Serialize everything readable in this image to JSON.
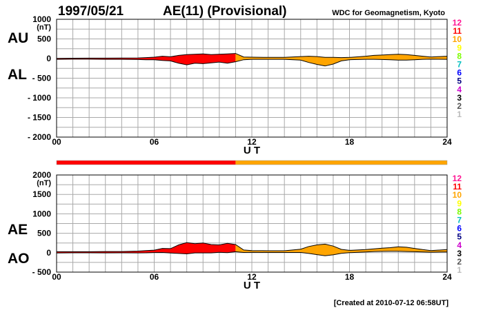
{
  "header": {
    "date": "1997/05/21",
    "title": "AE(11) (Provisional)",
    "source": "WDC for Geomagnetism, Kyoto",
    "created": "[Created at 2010-07-12 06:58UT]"
  },
  "stations": {
    "labels": [
      "12",
      "11",
      "10",
      "9",
      "8",
      "7",
      "6",
      "5",
      "4",
      "3",
      "2",
      "1"
    ],
    "colors": [
      "#ff1493",
      "#ff0000",
      "#ffa500",
      "#ffff00",
      "#7cfc00",
      "#00bfbf",
      "#0000ff",
      "#000080",
      "#cc00cc",
      "#000000",
      "#555555",
      "#bbbbbb"
    ]
  },
  "chart_data": [
    {
      "type": "area",
      "name": "AU/AL",
      "left_labels": [
        "AU",
        "AL"
      ],
      "unit_label": "(nT)",
      "xlabel": "U T",
      "x_ticks": [
        "00",
        "06",
        "12",
        "18",
        "24"
      ],
      "xlim": [
        0,
        24
      ],
      "ylim": [
        -2000,
        1000
      ],
      "y_ticks": [
        "1000",
        "500",
        "0",
        "- 500",
        "- 1000",
        "- 1500",
        "- 2000"
      ],
      "y_tick_values": [
        1000,
        500,
        0,
        -500,
        -1000,
        -1500,
        -2000
      ],
      "grid": true,
      "x": [
        0,
        1,
        2,
        3,
        4,
        5,
        5.5,
        6,
        6.5,
        7,
        7.5,
        8,
        8.5,
        9,
        9.5,
        10,
        10.5,
        11,
        11.5,
        12,
        13,
        14,
        15,
        15.5,
        16,
        16.5,
        17,
        17.5,
        18,
        19,
        19.5,
        20,
        20.5,
        21,
        21.5,
        22,
        22.5,
        23,
        24
      ],
      "series": [
        {
          "values": [
            5,
            8,
            10,
            10,
            12,
            15,
            25,
            35,
            60,
            45,
            80,
            100,
            110,
            120,
            100,
            110,
            120,
            130,
            40,
            35,
            30,
            30,
            50,
            60,
            50,
            30,
            30,
            25,
            30,
            60,
            80,
            90,
            100,
            110,
            100,
            80,
            60,
            40,
            60
          ]
        },
        {
          "values": [
            -20,
            -15,
            -15,
            -20,
            -20,
            -25,
            -30,
            -30,
            -50,
            -60,
            -120,
            -160,
            -120,
            -130,
            -110,
            -90,
            -120,
            -80,
            -30,
            -20,
            -20,
            -20,
            -40,
            -100,
            -150,
            -190,
            -140,
            -60,
            -30,
            -20,
            -20,
            -25,
            -30,
            -40,
            -40,
            -30,
            -20,
            -15,
            -20
          ]
        }
      ],
      "segments": [
        {
          "from": 0,
          "to": 11,
          "color": "#ff0000"
        },
        {
          "from": 11,
          "to": 24,
          "color": "#ffa500"
        }
      ]
    },
    {
      "type": "area",
      "name": "AE/AO",
      "left_labels": [
        "AE",
        "AO"
      ],
      "unit_label": "(nT)",
      "xlabel": "U T",
      "x_ticks": [
        "00",
        "06",
        "12",
        "18",
        "24"
      ],
      "xlim": [
        0,
        24
      ],
      "ylim": [
        -500,
        2000
      ],
      "y_ticks": [
        "2000",
        "1500",
        "1000",
        "500",
        "0",
        "- 500"
      ],
      "y_tick_values": [
        2000,
        1500,
        1000,
        500,
        0,
        -500
      ],
      "grid": true,
      "x": [
        0,
        1,
        2,
        3,
        4,
        5,
        5.5,
        6,
        6.5,
        7,
        7.5,
        8,
        8.5,
        9,
        9.5,
        10,
        10.5,
        11,
        11.5,
        12,
        13,
        14,
        15,
        15.5,
        16,
        16.5,
        17,
        17.5,
        18,
        19,
        19.5,
        20,
        20.5,
        21,
        21.5,
        22,
        22.5,
        23,
        24
      ],
      "series": [
        {
          "values": [
            25,
            25,
            25,
            30,
            30,
            40,
            55,
            65,
            110,
            105,
            200,
            260,
            230,
            250,
            210,
            200,
            240,
            210,
            70,
            55,
            50,
            50,
            90,
            160,
            200,
            220,
            170,
            85,
            60,
            80,
            100,
            115,
            130,
            150,
            140,
            110,
            80,
            55,
            80
          ]
        },
        {
          "values": [
            -8,
            -4,
            -3,
            -5,
            -4,
            -5,
            -3,
            3,
            5,
            -8,
            -20,
            -30,
            -5,
            -5,
            -5,
            10,
            0,
            25,
            5,
            8,
            5,
            5,
            5,
            -20,
            -50,
            -80,
            -55,
            -18,
            0,
            20,
            30,
            33,
            35,
            35,
            30,
            25,
            20,
            13,
            20
          ]
        }
      ],
      "segments": [
        {
          "from": 0,
          "to": 11,
          "color": "#ff0000"
        },
        {
          "from": 11,
          "to": 24,
          "color": "#ffa500"
        }
      ]
    }
  ]
}
